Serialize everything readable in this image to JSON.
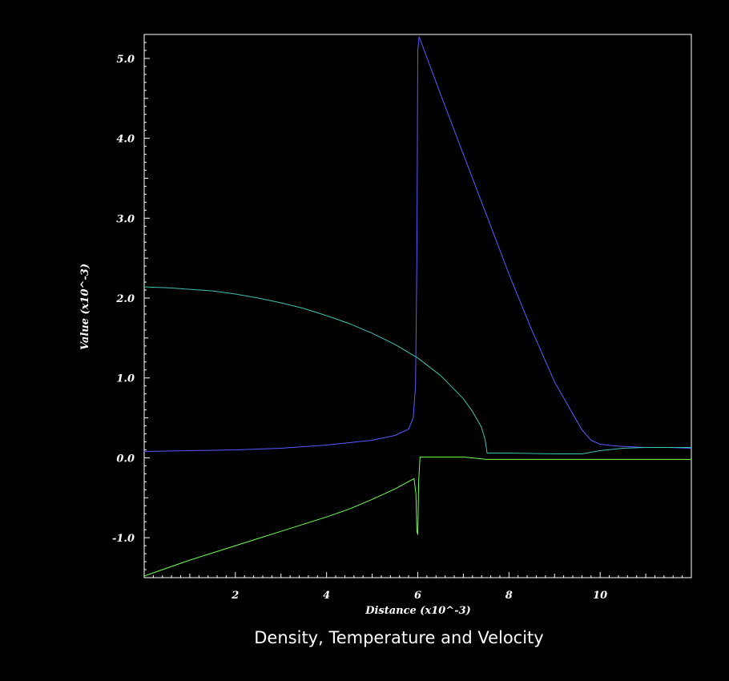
{
  "chart_data": {
    "type": "line",
    "title": "Density, Temperature and Velocity",
    "xlabel": "Distance (x10^-3)",
    "ylabel": "Value (x10^-3)",
    "xlim": [
      0,
      12
    ],
    "ylim": [
      -1.5,
      5.3
    ],
    "x_ticks": [
      {
        "value": 2,
        "label": "2"
      },
      {
        "value": 4,
        "label": "4"
      },
      {
        "value": 6,
        "label": "6"
      },
      {
        "value": 8,
        "label": "8"
      },
      {
        "value": 10,
        "label": "10"
      }
    ],
    "y_ticks": [
      {
        "value": -1,
        "label": "-1.0"
      },
      {
        "value": 0,
        "label": "0.0"
      },
      {
        "value": 1,
        "label": "1.0"
      },
      {
        "value": 2,
        "label": "2.0"
      },
      {
        "value": 3,
        "label": "3.0"
      },
      {
        "value": 4,
        "label": "4.0"
      },
      {
        "value": 5,
        "label": "5.0"
      }
    ],
    "grid": false,
    "series": [
      {
        "color": "#5a5aff",
        "x": [
          0,
          1,
          2,
          3,
          4,
          4.5,
          5,
          5.5,
          5.8,
          5.9,
          5.95,
          5.98,
          6.0,
          6.03,
          6.5,
          7,
          7.5,
          8,
          8.5,
          9,
          9.3,
          9.6,
          9.8,
          10,
          10.3,
          10.6,
          11,
          11.5,
          12
        ],
        "y": [
          0.08,
          0.09,
          0.1,
          0.12,
          0.16,
          0.19,
          0.22,
          0.28,
          0.36,
          0.5,
          0.9,
          2.5,
          5.1,
          5.27,
          4.55,
          3.8,
          3.05,
          2.3,
          1.6,
          0.95,
          0.65,
          0.35,
          0.22,
          0.17,
          0.15,
          0.14,
          0.13,
          0.13,
          0.12
        ]
      },
      {
        "color": "#40c0b0",
        "x": [
          0,
          0.5,
          1,
          1.5,
          2,
          2.5,
          3,
          3.5,
          4,
          4.5,
          5,
          5.5,
          6,
          6.5,
          7,
          7.2,
          7.4,
          7.48,
          7.52,
          8,
          9,
          9.6,
          10,
          10.5,
          11,
          11.5,
          12
        ],
        "y": [
          2.14,
          2.13,
          2.11,
          2.09,
          2.05,
          2.0,
          1.94,
          1.87,
          1.78,
          1.68,
          1.56,
          1.42,
          1.25,
          1.03,
          0.74,
          0.58,
          0.38,
          0.22,
          0.06,
          0.06,
          0.05,
          0.05,
          0.09,
          0.12,
          0.13,
          0.13,
          0.13
        ]
      },
      {
        "color": "#70ff50",
        "x": [
          0,
          0.5,
          1,
          1.5,
          2,
          2.5,
          3,
          3.5,
          4,
          4.5,
          5,
          5.5,
          5.85,
          5.92,
          5.96,
          5.98,
          6.0,
          6.02,
          6.05,
          6.5,
          7,
          7.5,
          8,
          9,
          10,
          11,
          12
        ],
        "y": [
          -1.48,
          -1.38,
          -1.28,
          -1.19,
          -1.1,
          -1.01,
          -0.92,
          -0.83,
          -0.74,
          -0.64,
          -0.52,
          -0.39,
          -0.28,
          -0.26,
          -0.45,
          -0.92,
          -0.96,
          -0.3,
          0.01,
          0.01,
          0.01,
          -0.02,
          -0.02,
          -0.02,
          -0.02,
          -0.02,
          -0.02
        ]
      }
    ]
  }
}
